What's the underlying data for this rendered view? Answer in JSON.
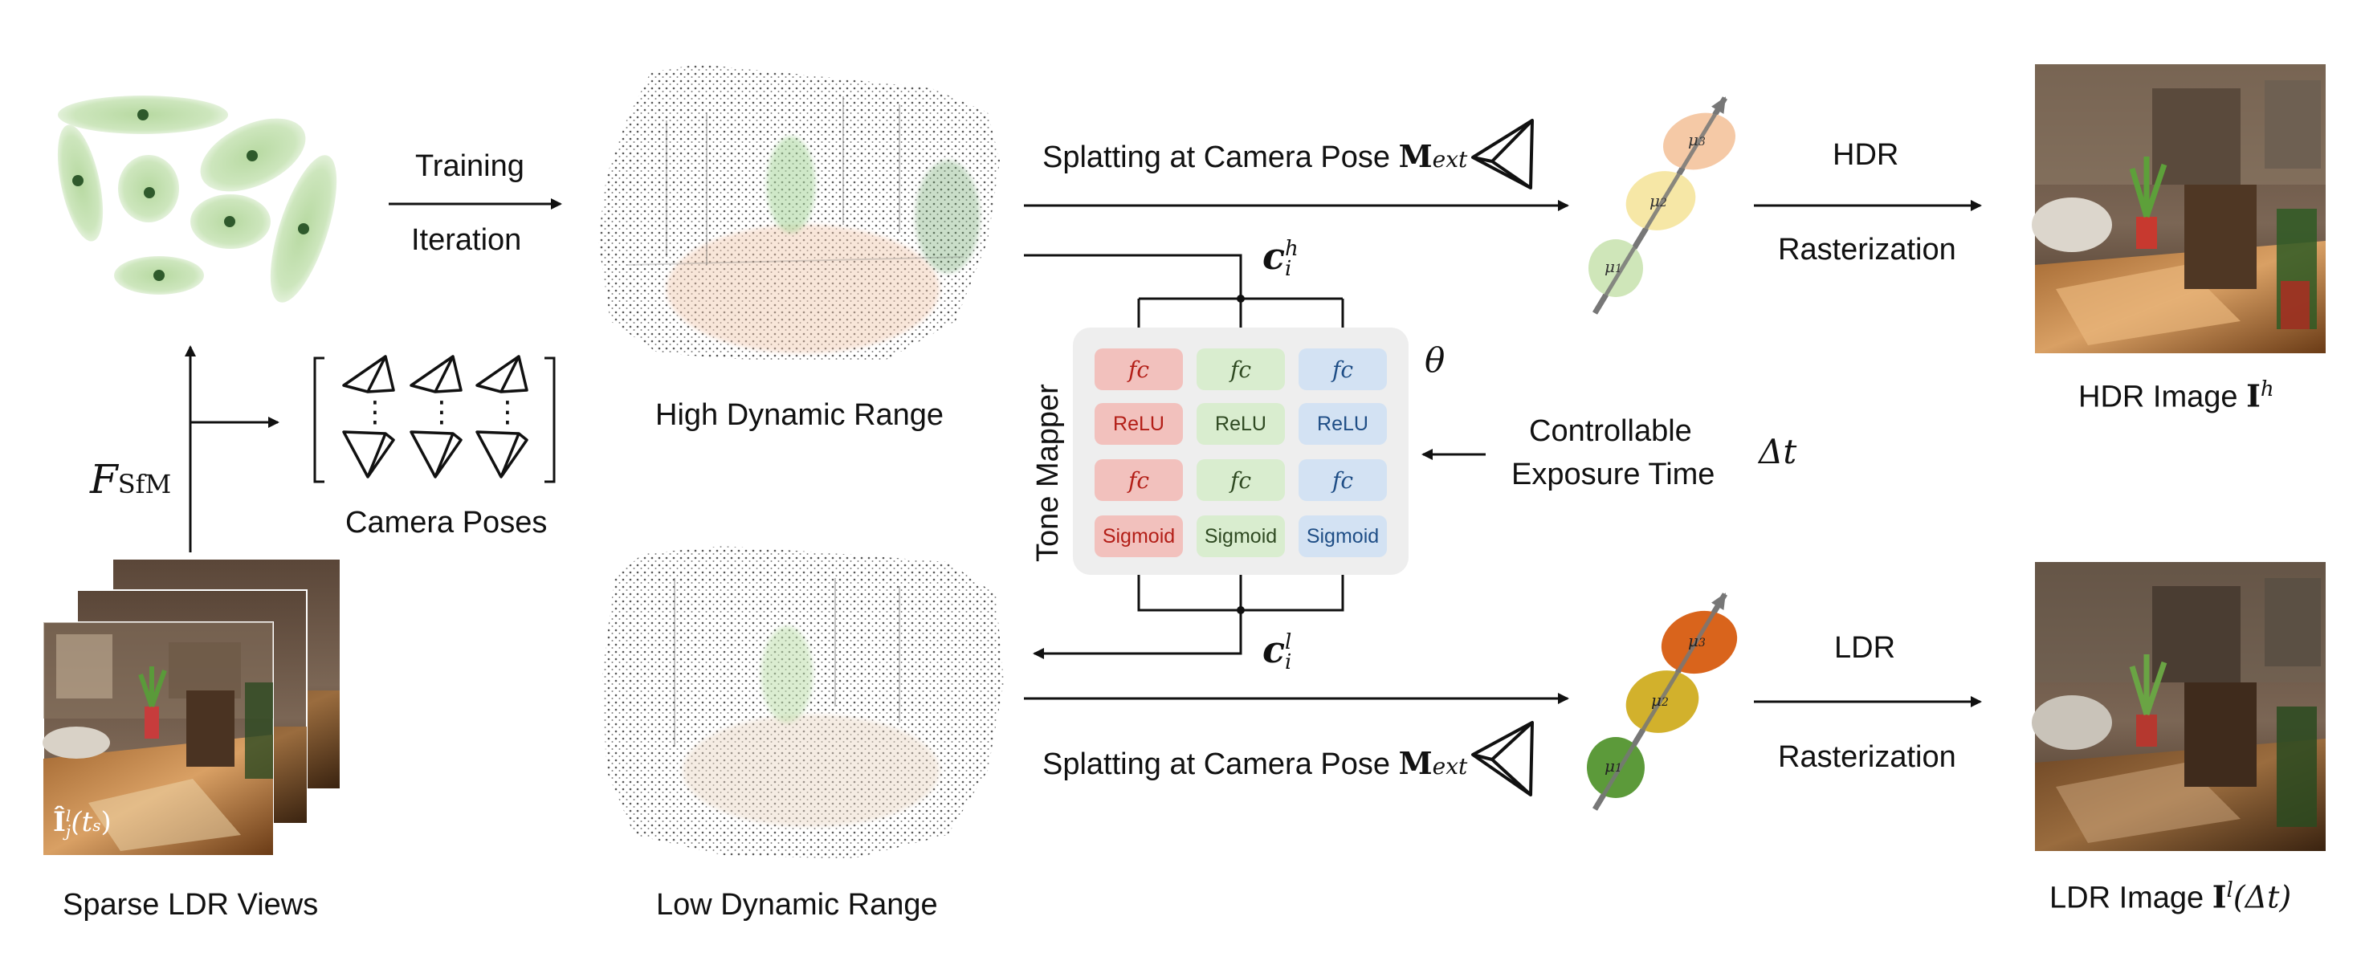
{
  "left": {
    "training": "Training",
    "iteration": "Iteration",
    "f_sfm_main": "F",
    "f_sfm_sub": "SfM",
    "camera_poses": "Camera Poses",
    "sparse_ldr_views": "Sparse LDR Views",
    "ldr_view_label_main": "Î",
    "ldr_view_label_sup": "l",
    "ldr_view_label_sub": "j",
    "ldr_view_label_arg": "(t",
    "ldr_view_label_arg_sub": "s",
    "ldr_view_label_close": ")",
    "dots": "⋮"
  },
  "center": {
    "high_dynamic_range": "High Dynamic Range",
    "low_dynamic_range": "Low Dynamic Range",
    "splatting_top": "Splatting at Camera Pose ",
    "splatting_bottom": "Splatting at Camera Pose ",
    "m_main": "M",
    "m_sub": "ext",
    "c_main": "c",
    "c_h_sup": "h",
    "c_l_sup": "l",
    "c_sub": "i"
  },
  "tone_mapper": {
    "title": "Tone Mapper",
    "theta": "θ",
    "controllable": "Controllable",
    "exposure_time": "Exposure Time",
    "delta_t": "Δt",
    "columns": [
      {
        "color": "red",
        "cells": [
          "fc",
          "ReLU",
          "fc",
          "Sigmoid"
        ]
      },
      {
        "color": "green",
        "cells": [
          "fc",
          "ReLU",
          "fc",
          "Sigmoid"
        ]
      },
      {
        "color": "blue",
        "cells": [
          "fc",
          "ReLU",
          "fc",
          "Sigmoid"
        ]
      }
    ]
  },
  "gaussians": {
    "mu1": "μ",
    "mu1_sub": "1",
    "mu2": "μ",
    "mu2_sub": "2",
    "mu3": "μ",
    "mu3_sub": "3"
  },
  "right": {
    "hdr": "HDR",
    "ldr": "LDR",
    "rasterization_top": "Rasterization",
    "rasterization_bottom": "Rasterization",
    "hdr_image": "HDR Image ",
    "hdr_image_main": "I",
    "hdr_image_sup": "h",
    "ldr_image": "LDR Image ",
    "ldr_image_main": "I",
    "ldr_image_sup": "l",
    "ldr_image_arg": "(Δt)"
  },
  "colors": {
    "gaussian_green": "#c9e3b4",
    "gaussian_dot": "#2f5a2c",
    "hdr_mu1": "#cfe6b9",
    "hdr_mu2": "#f6e7a6",
    "hdr_mu3": "#f5c9a6",
    "ldr_mu1": "#5c9a3a",
    "ldr_mu2": "#d2b12c",
    "ldr_mu3": "#d9641c"
  }
}
